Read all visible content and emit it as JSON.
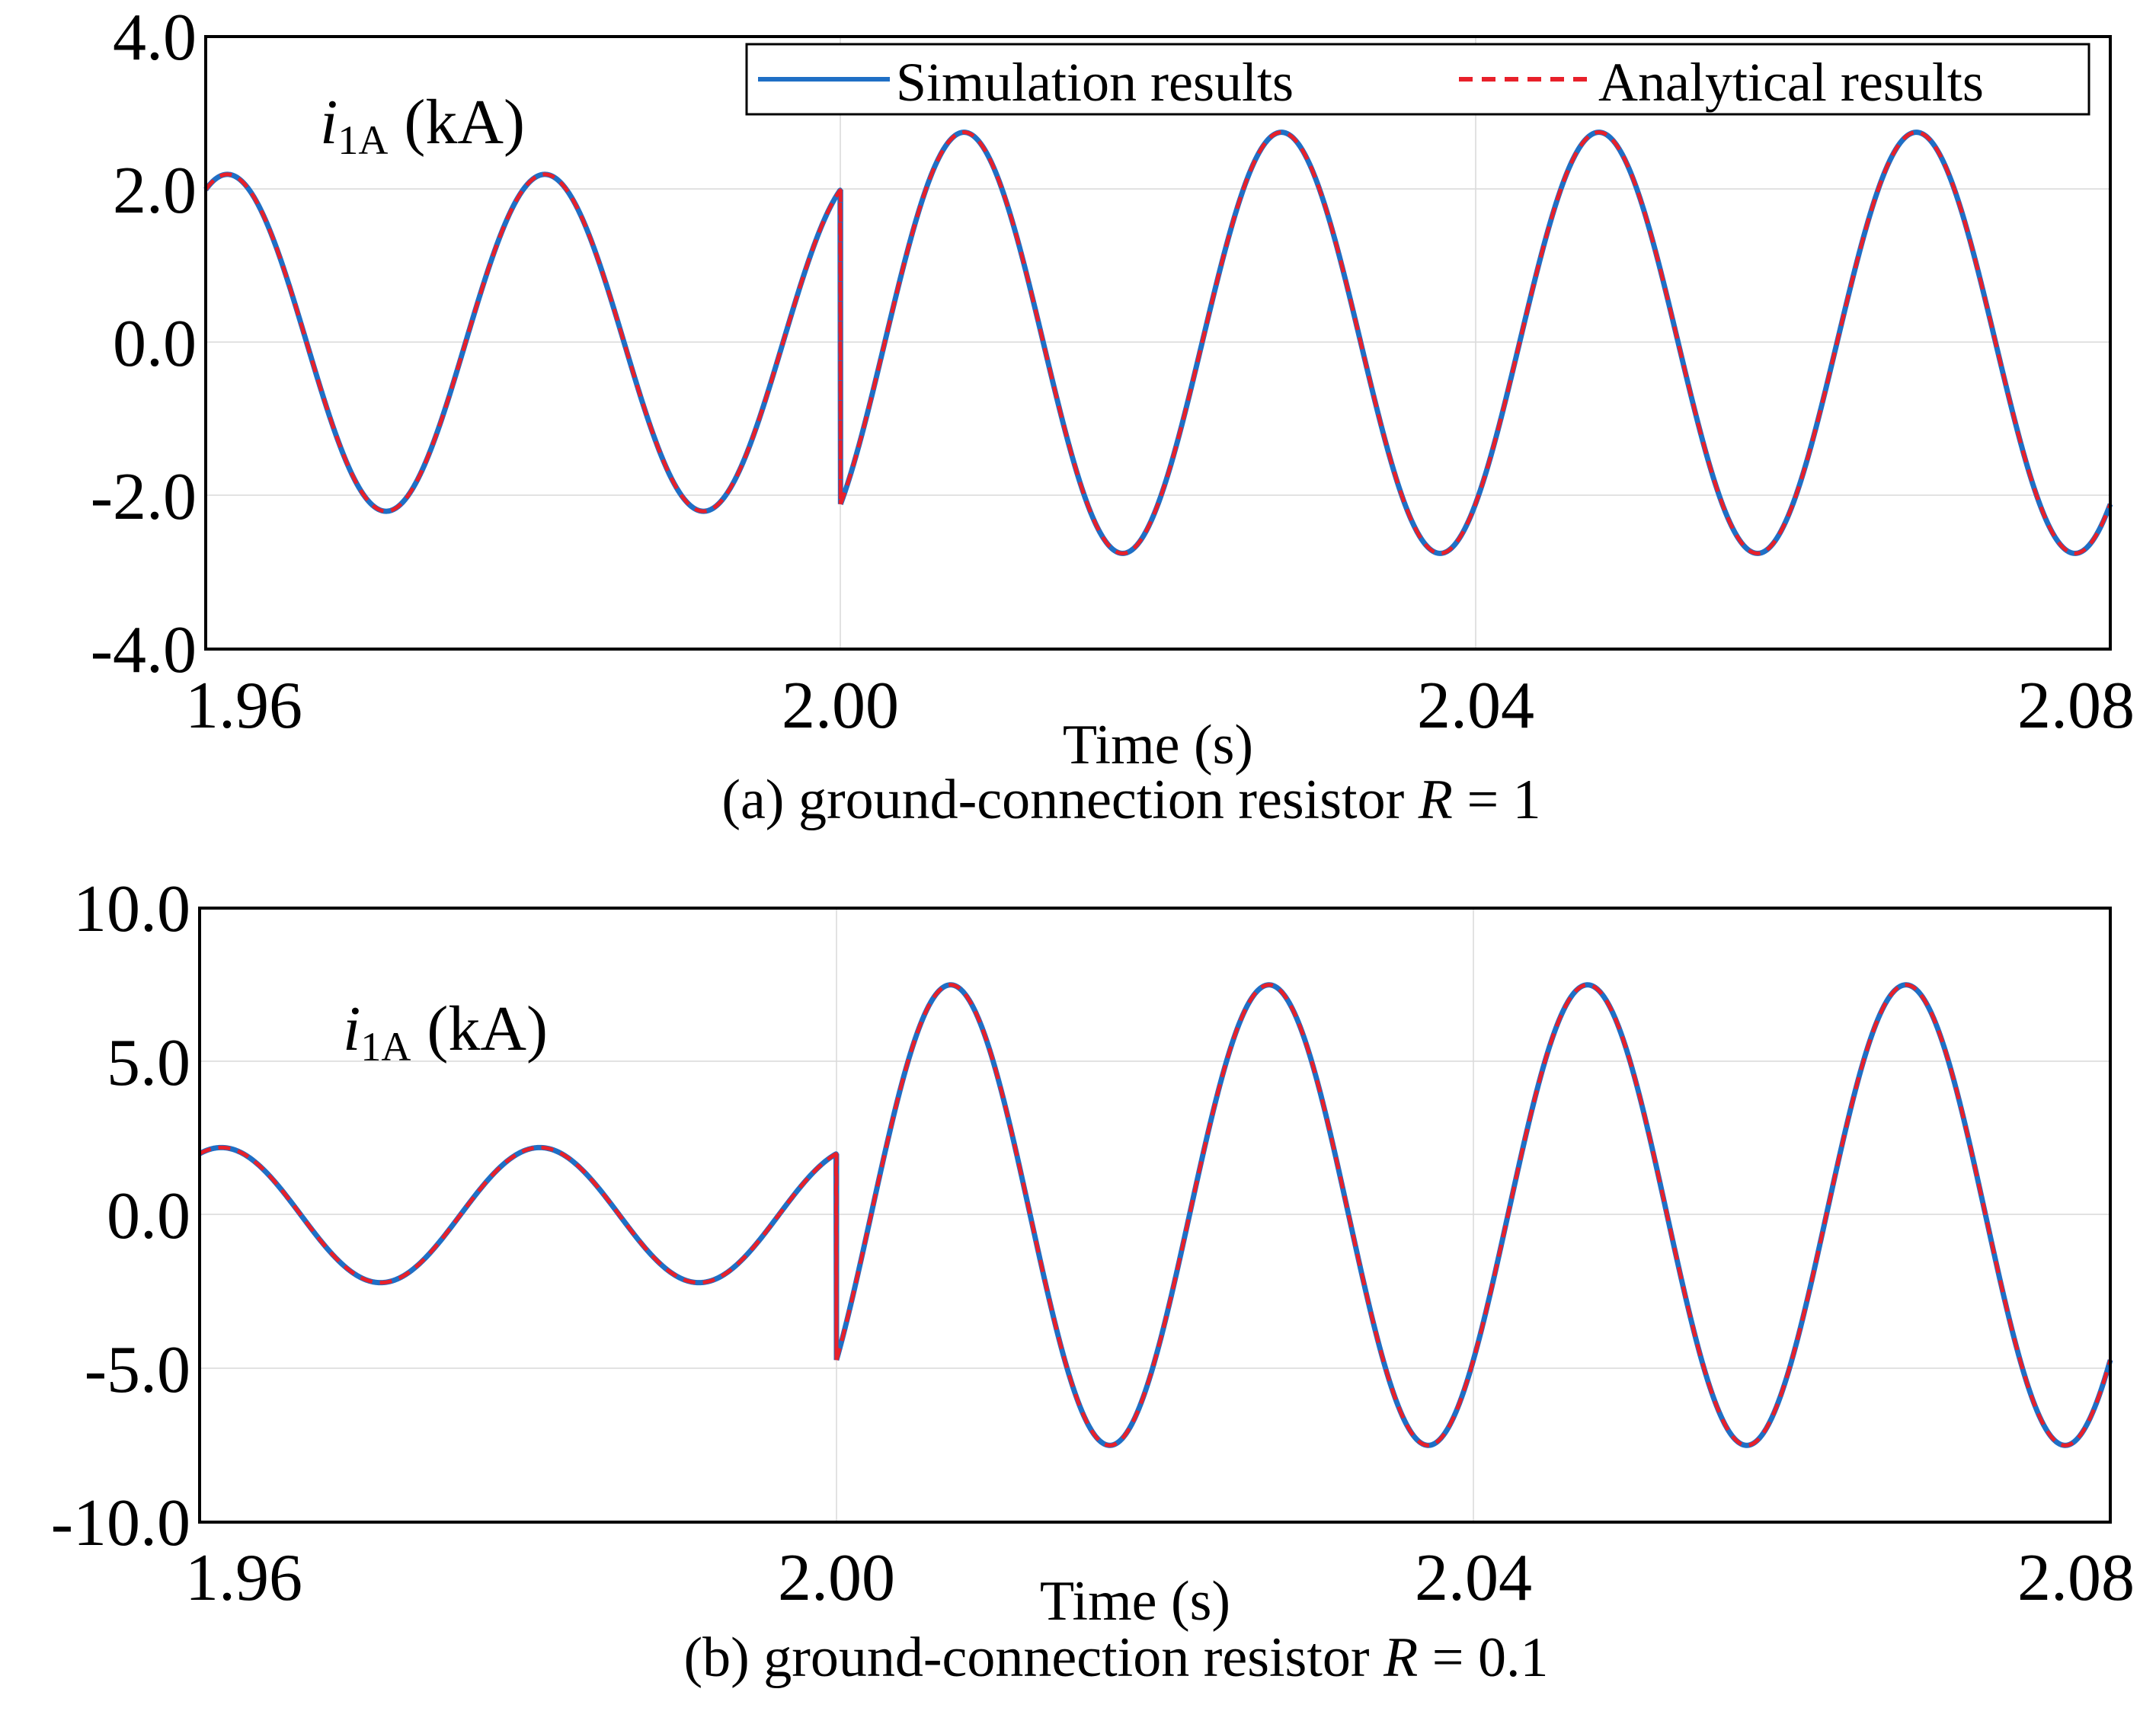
{
  "chart_data": [
    {
      "id": "a",
      "type": "line",
      "title": "",
      "xlabel": "Time (s)",
      "caption_prefix": "(a) ground-connection resistor ",
      "caption_var": "R",
      "caption_suffix": " = 1",
      "annotation_var": "i",
      "annotation_sub": "1A",
      "annotation_unit": " (kA)",
      "xlim": [
        1.96,
        2.08
      ],
      "ylim": [
        -4.0,
        4.0
      ],
      "xticks": [
        1.96,
        2.0,
        2.04,
        2.08
      ],
      "xtick_labels": [
        "1.96",
        "2.00",
        "2.04",
        "2.08"
      ],
      "yticks": [
        4.0,
        2.0,
        0.0,
        -2.0,
        -4.0
      ],
      "ytick_labels": [
        "4.0",
        "2.0",
        "0.0",
        "-2.0",
        "-4.0"
      ],
      "grid": true,
      "legend": {
        "placement": "top-right",
        "entries": [
          {
            "name": "Simulation results",
            "color": "#1f6fc5",
            "style": "solid"
          },
          {
            "name": "Analytical results",
            "color": "#e8202a",
            "style": "dashed"
          }
        ]
      },
      "signal": {
        "fault_time": 2.0,
        "pre_amplitude": 2.2,
        "pre_phase_deg": 65.4,
        "post_amplitude": 2.75,
        "post_phase_deg": -50.0,
        "frequency_hz": 50
      },
      "series": [
        {
          "name": "Simulation results",
          "color": "#1f6fc5",
          "style": "solid"
        },
        {
          "name": "Analytical results",
          "color": "#e8202a",
          "style": "dashed"
        }
      ]
    },
    {
      "id": "b",
      "type": "line",
      "title": "",
      "xlabel": "Time (s)",
      "caption_prefix": "(b) ground-connection resistor ",
      "caption_var": "R",
      "caption_suffix": " = 0.1",
      "annotation_var": "i",
      "annotation_sub": "1A",
      "annotation_unit": " (kA)",
      "xlim": [
        1.96,
        2.08
      ],
      "ylim": [
        -10.0,
        10.0
      ],
      "xticks": [
        1.96,
        2.0,
        2.04,
        2.08
      ],
      "xtick_labels": [
        "1.96",
        "2.00",
        "2.04",
        "2.08"
      ],
      "yticks": [
        10.0,
        5.0,
        0.0,
        -5.0,
        -10.0
      ],
      "ytick_labels": [
        "10.0",
        "5.0",
        "0.0",
        "-5.0",
        "-10.0"
      ],
      "grid": true,
      "signal": {
        "fault_time": 2.0,
        "pre_amplitude": 2.2,
        "pre_phase_deg": 65.4,
        "post_amplitude": 7.5,
        "post_phase_deg": -39.0,
        "frequency_hz": 50
      },
      "series": [
        {
          "name": "Simulation results",
          "color": "#1f6fc5",
          "style": "solid"
        },
        {
          "name": "Analytical results",
          "color": "#e8202a",
          "style": "dashed"
        }
      ]
    }
  ]
}
